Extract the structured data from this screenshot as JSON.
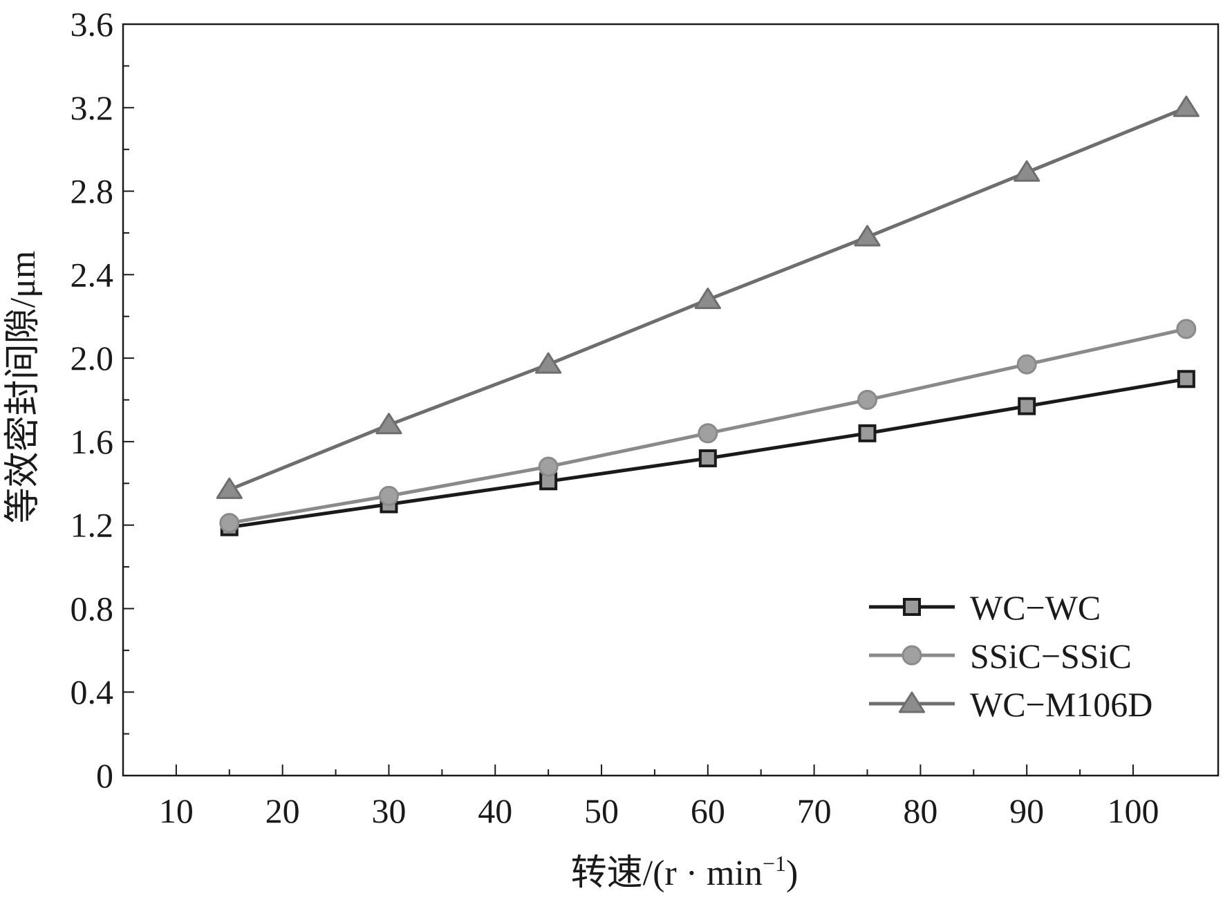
{
  "chart_data": {
    "type": "line",
    "xlabel": "转速/(r · min",
    "xlabel_sup": "−1",
    "xlabel_close": ")",
    "ylabel": "等效密封间隙/μm",
    "xlim": [
      5,
      108
    ],
    "ylim": [
      0,
      3.6
    ],
    "x_ticks": [
      10,
      20,
      30,
      40,
      50,
      60,
      70,
      80,
      90,
      100
    ],
    "x_tick_labels": [
      "10",
      "20",
      "30",
      "40",
      "50",
      "60",
      "70",
      "80",
      "90",
      "100"
    ],
    "y_ticks": [
      0,
      0.4,
      0.8,
      1.2,
      1.6,
      2.0,
      2.4,
      2.8,
      3.2,
      3.6
    ],
    "y_tick_labels": [
      "0",
      "0.4",
      "0.8",
      "1.2",
      "1.6",
      "2.0",
      "2.4",
      "2.8",
      "3.2",
      "3.6"
    ],
    "x": [
      15,
      30,
      45,
      60,
      75,
      90,
      105
    ],
    "series": [
      {
        "name": "WC−WC",
        "values": [
          1.19,
          1.3,
          1.41,
          1.52,
          1.64,
          1.77,
          1.9
        ],
        "color": "#1a1a1a",
        "marker": "square",
        "marker_fill": "#9a9a9a"
      },
      {
        "name": "SSiC−SSiC",
        "values": [
          1.21,
          1.34,
          1.48,
          1.64,
          1.8,
          1.97,
          2.14
        ],
        "color": "#8a8a8a",
        "marker": "circle",
        "marker_fill": "#a0a0a0"
      },
      {
        "name": "WC−M106D",
        "values": [
          1.37,
          1.68,
          1.97,
          2.28,
          2.58,
          2.89,
          3.2
        ],
        "color": "#6e6e6e",
        "marker": "triangle",
        "marker_fill": "#8c8c8c"
      }
    ],
    "grid": false,
    "legend_position": "bottom-right"
  }
}
